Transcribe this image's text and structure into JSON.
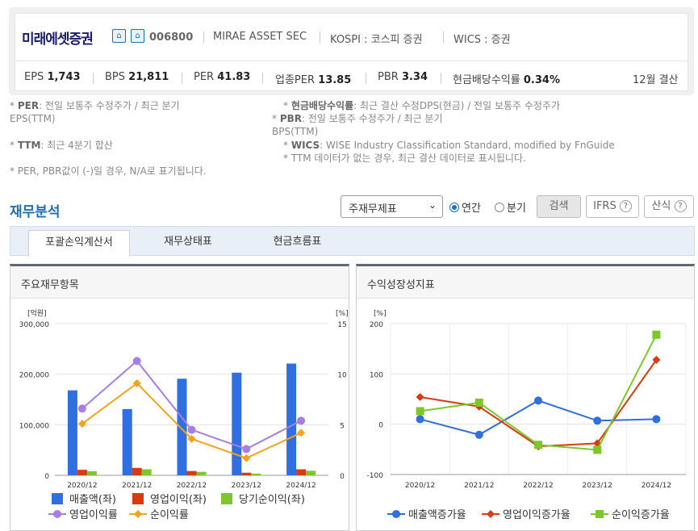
{
  "company": {
    "name": "미래에셋증권",
    "code": "006800",
    "eng_name": "MIRAE ASSET SEC",
    "market": "KOSPI : 코스피 증권",
    "wics": "WICS : 증권",
    "icons": [
      "building-icon",
      "factory-icon"
    ]
  },
  "metrics": [
    {
      "label": "EPS",
      "value": "1,743"
    },
    {
      "label": "BPS",
      "value": "21,811"
    },
    {
      "label": "PER",
      "value": "41.83"
    },
    {
      "label": "업종PER",
      "value": "13.85"
    },
    {
      "label": "PBR",
      "value": "3.34"
    },
    {
      "label": "현금배당수익률",
      "value": "0.34%"
    }
  ],
  "fiscal": "12월 결산",
  "notes": {
    "per_key": "PER",
    "per_1": ": 전일 보통주 수정주가 / 최근 분기",
    "per_2": "EPS(TTM)",
    "ttm_key": "TTM",
    "ttm": ": 최근 4분기 합산",
    "na": "* PER, PBR값이 (-)일 경우, N/A로 표기됩니다.",
    "div_key": "현금배당수익률",
    "div": ": 최근 결산 수정DPS(현금) / 전일 보통주 수정주가",
    "pbr_key": "PBR",
    "pbr_1": ": 전일 보통주 수정주가 / 최근 분기",
    "pbr_2": "BPS(TTM)",
    "wics_key": "WICS",
    "wics": ": WISE Industry Classification Standard, modified by FnGuide",
    "ttm_missing": "* TTM 데이터가 없는 경우, 최근 결산 데이터로 표시됩니다."
  },
  "section_title": "재무분석",
  "controls": {
    "select": "주재무제표",
    "radio_annual": "연간",
    "radio_quarter": "분기",
    "search": "검색",
    "ifrs": "IFRS",
    "calc": "산식"
  },
  "tabs": [
    "포괄손익계산서",
    "재무상태표",
    "현금흐름표"
  ],
  "colors": {
    "accent": "#1f6fb5",
    "blue": "#2f6fe0",
    "red": "#d83a12",
    "green": "#7cc82a",
    "purple": "#a77ee2",
    "orange": "#f5a21c"
  },
  "chart_data": [
    {
      "type": "bar",
      "title": "주요재무항목",
      "categories": [
        "2020/12",
        "2021/12",
        "2022/12",
        "2023/12",
        "2024/12"
      ],
      "left_axis": {
        "unit": "[억원]",
        "ticks": [
          "300,000",
          "200,000",
          "100,000",
          "0"
        ],
        "range": [
          0,
          300000
        ]
      },
      "right_axis": {
        "unit": "[%]",
        "ticks": [
          "15",
          "10",
          "5",
          "0"
        ],
        "range": [
          0,
          15
        ]
      },
      "series": [
        {
          "name": "매출액(좌)",
          "kind": "bar",
          "values": [
            168000,
            131000,
            191000,
            203000,
            221000
          ]
        },
        {
          "name": "영업이익(좌)",
          "kind": "bar",
          "values": [
            11000,
            14700,
            8500,
            5200,
            11900
          ]
        },
        {
          "name": "당기순이익(좌)",
          "kind": "bar",
          "values": [
            8200,
            11900,
            6900,
            3400,
            9000
          ]
        },
        {
          "name": "영업이익률",
          "kind": "line",
          "values": [
            6.6,
            11.3,
            4.5,
            2.6,
            5.4
          ]
        },
        {
          "name": "순이익률",
          "kind": "line",
          "values": [
            5.1,
            9.1,
            3.6,
            1.7,
            4.2
          ]
        }
      ]
    },
    {
      "type": "line",
      "title": "수익성장성지표",
      "categories": [
        "2020/12",
        "2021/12",
        "2022/12",
        "2023/12",
        "2024/12"
      ],
      "y_axis": {
        "unit": "[%]",
        "ticks": [
          "200",
          "100",
          "0",
          "-100"
        ],
        "range": [
          -100,
          200
        ]
      },
      "series": [
        {
          "name": "매출액증가율",
          "values": [
            10,
            -21,
            47,
            7,
            10
          ]
        },
        {
          "name": "영업이익증가율",
          "values": [
            54,
            35,
            -44,
            -38,
            128
          ]
        },
        {
          "name": "순이익증가율",
          "values": [
            26,
            43,
            -41,
            -51,
            178
          ]
        }
      ]
    }
  ]
}
